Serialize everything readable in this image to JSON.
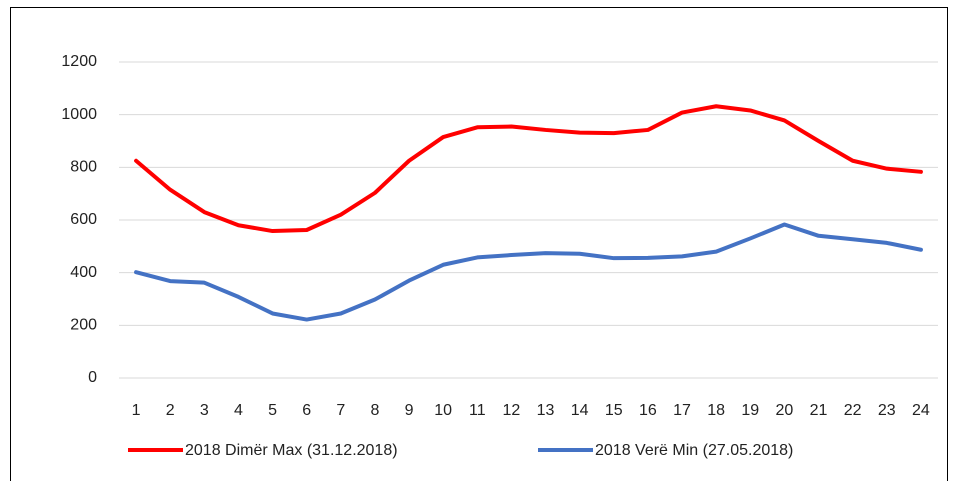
{
  "chart_data": {
    "type": "line",
    "categories": [
      "1",
      "2",
      "3",
      "4",
      "5",
      "6",
      "7",
      "8",
      "9",
      "10",
      "11",
      "12",
      "13",
      "14",
      "15",
      "16",
      "17",
      "18",
      "19",
      "20",
      "21",
      "22",
      "23",
      "24"
    ],
    "series": [
      {
        "name": "2018 Dimër Max (31.12.2018)",
        "color": "#ff0000",
        "values": [
          825,
          715,
          630,
          580,
          558,
          562,
          620,
          703,
          825,
          915,
          952,
          955,
          942,
          932,
          930,
          942,
          1008,
          1032,
          1016,
          978,
          900,
          825,
          795,
          783
        ]
      },
      {
        "name": "2018 Verë Min (27.05.2018)",
        "color": "#4472c4",
        "values": [
          402,
          368,
          362,
          308,
          245,
          222,
          245,
          298,
          370,
          430,
          458,
          467,
          474,
          472,
          455,
          456,
          462,
          480,
          530,
          583,
          540,
          527,
          513,
          487
        ]
      }
    ],
    "ylim": [
      0,
      1200
    ],
    "yticks": [
      0,
      200,
      400,
      600,
      800,
      1000,
      1200
    ],
    "grid": true,
    "legend": "bottom"
  }
}
